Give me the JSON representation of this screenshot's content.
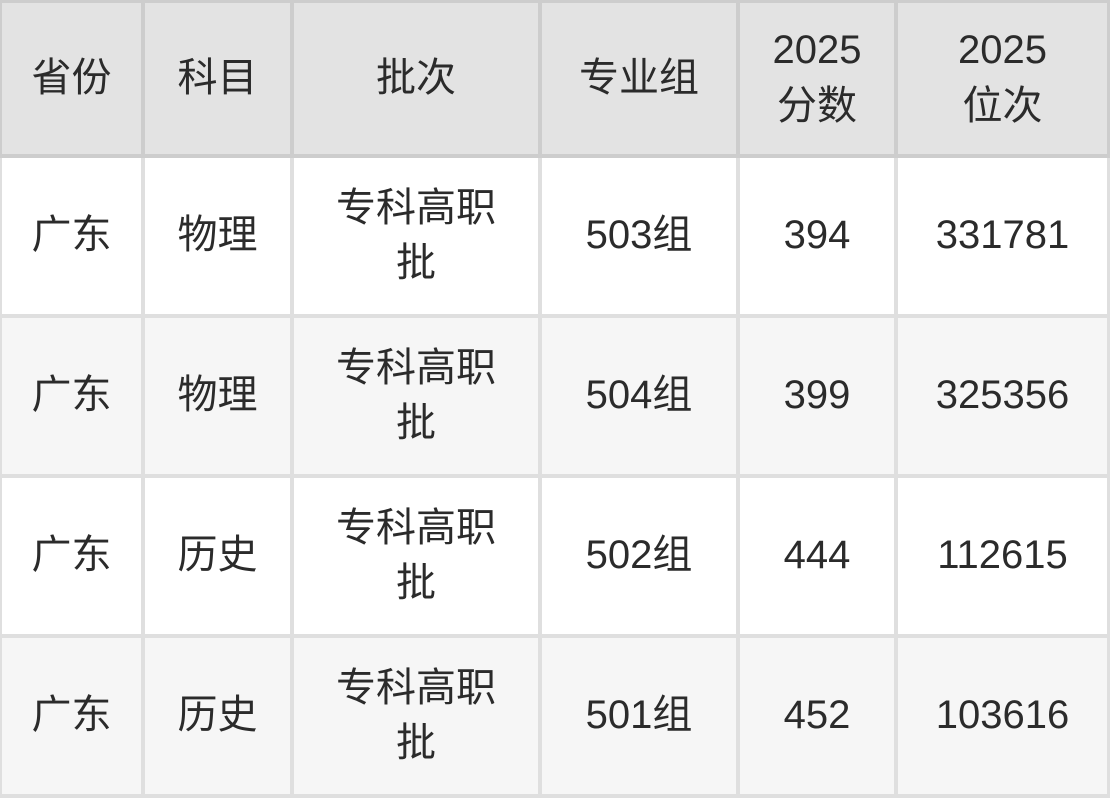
{
  "chart_data": {
    "type": "table",
    "title": "",
    "columns": [
      "省份",
      "科目",
      "批次",
      "专业组",
      "2025分数",
      "2025位次"
    ],
    "rows": [
      [
        "广东",
        "物理",
        "专科高职批",
        "503组",
        "394",
        "331781"
      ],
      [
        "广东",
        "物理",
        "专科高职批",
        "504组",
        "399",
        "325356"
      ],
      [
        "广东",
        "历史",
        "专科高职批",
        "502组",
        "444",
        "112615"
      ],
      [
        "广东",
        "历史",
        "专科高职批",
        "501组",
        "452",
        "103616"
      ]
    ],
    "numeric": {
      "score_2025": [
        394,
        399,
        444,
        452
      ],
      "rank_2025": [
        331781,
        325356,
        112615,
        103616
      ]
    },
    "layout_hints": {
      "header_position": "top",
      "zebra_striping": true,
      "grid": true
    }
  },
  "colors": {
    "header_bg": "#e3e3e3",
    "header_divider": "#cdcdcd",
    "row_bg": "#ffffff",
    "row_alt_bg": "#f6f6f6",
    "body_divider": "#dfdfdf",
    "text": "#2b2b2b"
  }
}
